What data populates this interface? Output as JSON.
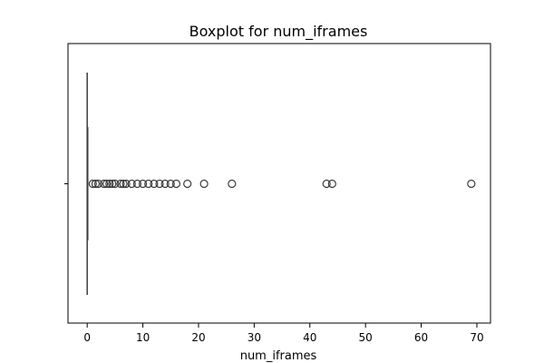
{
  "chart_data": {
    "type": "boxplot",
    "orientation": "horizontal",
    "title": "Boxplot for num_iframes",
    "xlabel": "num_iframes",
    "ylabel": "",
    "xlim": [
      -3.45,
      72.45
    ],
    "xticks": [
      0,
      10,
      20,
      30,
      40,
      50,
      60,
      70
    ],
    "xtick_labels": [
      "0",
      "10",
      "20",
      "30",
      "40",
      "50",
      "60",
      "70"
    ],
    "grid": false,
    "series": [
      {
        "stats": {
          "min": 0,
          "q1": 0,
          "median": 0,
          "q3": 0,
          "max": 0
        },
        "outliers": [
          1,
          1.5,
          2,
          3,
          3.5,
          4,
          4.5,
          5,
          6,
          6.5,
          7,
          8,
          9,
          10,
          11,
          12,
          13,
          14,
          15,
          16,
          18,
          21,
          26,
          43,
          44,
          69
        ]
      }
    ],
    "colors": {
      "box_edge": "#3d3d3d",
      "outlier_edge": "#3d3d3d",
      "axis": "#000000",
      "background": "#ffffff"
    }
  }
}
